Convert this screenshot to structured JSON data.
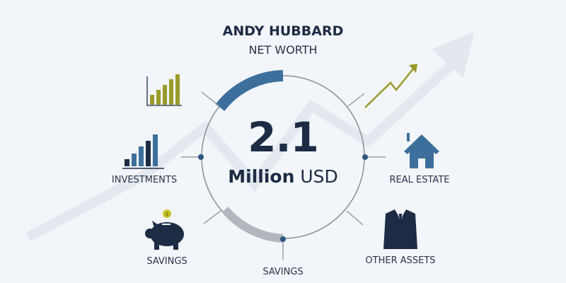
{
  "header": {
    "name": "ANDY HUBBARD",
    "subtitle": "NET WORTH"
  },
  "center": {
    "value": "2.1",
    "unit_bold": "Million",
    "currency": "USD"
  },
  "segments": [
    {
      "label": "INVESTMENTS",
      "icon": "bar-chart-icon"
    },
    {
      "label": "REAL ESTATE",
      "icon": "house-icon"
    },
    {
      "label": "SAVINGS",
      "icon": "piggy-bank-icon"
    },
    {
      "label": "SAVINGS",
      "icon": "gray-arc"
    },
    {
      "label": "OTHER ASSETS",
      "icon": "suit-icon"
    }
  ],
  "colors": {
    "navy": "#1d2b44",
    "blue": "#3d6f9c",
    "olive": "#9a9a2a",
    "gray": "#b3b7bd",
    "gold": "#c9c32e"
  }
}
